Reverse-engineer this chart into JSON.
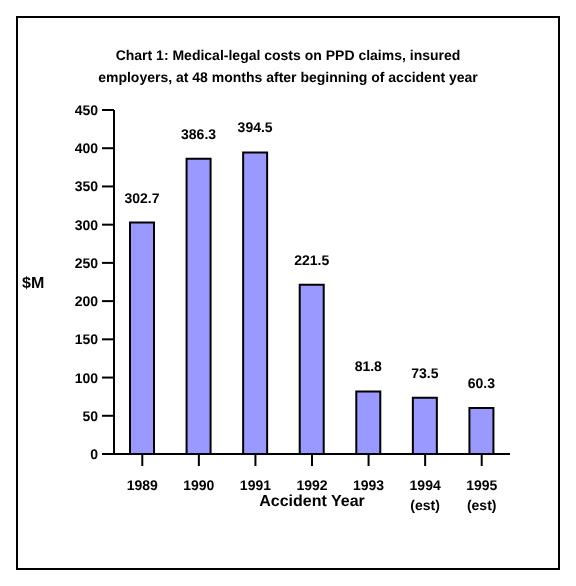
{
  "chart_data": {
    "type": "bar",
    "title": "Chart 1: Medical-legal costs on PPD claims, insured employers, at 48 months after beginning of accident year",
    "xlabel": "Accident Year",
    "ylabel": "$M",
    "categories": [
      "1989",
      "1990",
      "1991",
      "1992",
      "1993",
      "1994 (est)",
      "1995 (est)"
    ],
    "values": [
      302.7,
      386.3,
      394.5,
      221.5,
      81.8,
      73.5,
      60.3
    ],
    "color": "#9999ff",
    "ylim": [
      0,
      450
    ],
    "yticks": [
      0,
      50,
      100,
      150,
      200,
      250,
      300,
      350,
      400,
      450
    ],
    "data_labels": true
  }
}
